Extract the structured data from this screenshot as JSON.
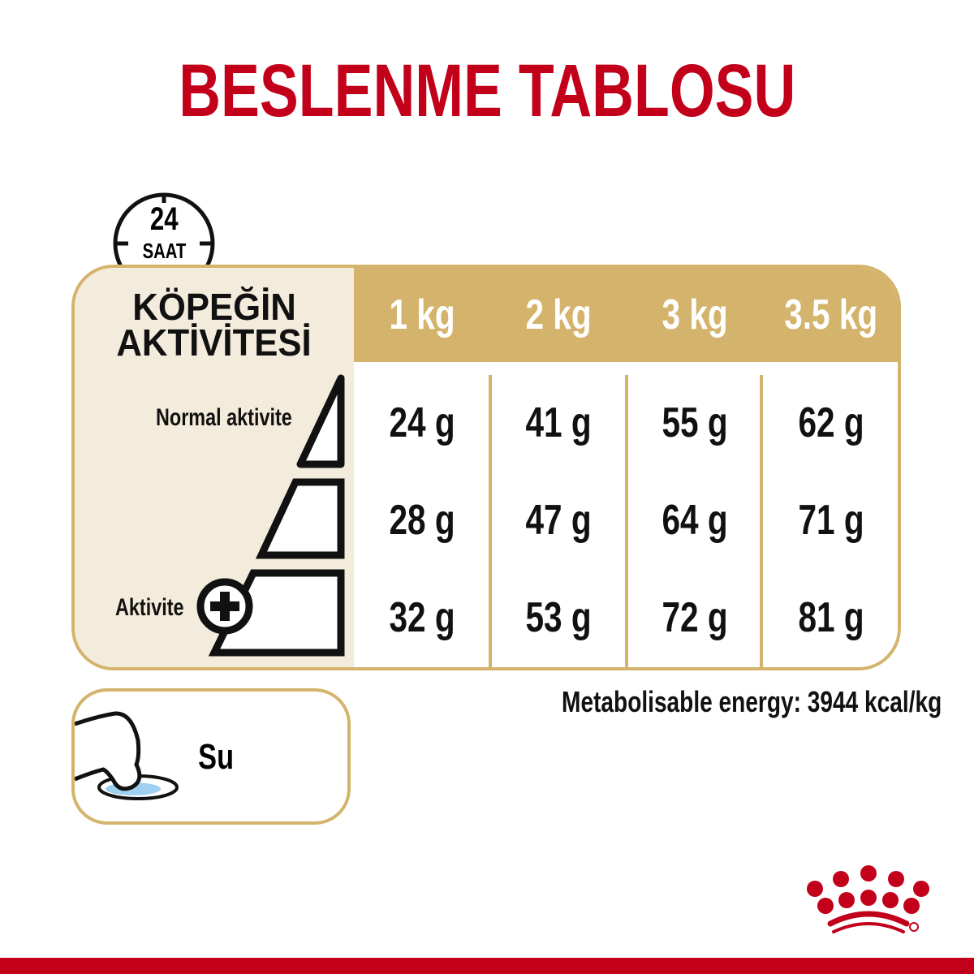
{
  "title": "BESLENME TABLOSU",
  "clock": {
    "hours": "24",
    "unit": "SAAT"
  },
  "activity": {
    "title_line1": "KÖPEĞİN",
    "title_line2": "AKTİVİTESİ",
    "normal_label": "Normal aktivite",
    "high_label": "Aktivite"
  },
  "weights": [
    "1 kg",
    "2 kg",
    "3 kg",
    "3.5 kg"
  ],
  "rows": [
    [
      "24 g",
      "41 g",
      "55 g",
      "62 g"
    ],
    [
      "28 g",
      "47 g",
      "64 g",
      "71 g"
    ],
    [
      "32 g",
      "53 g",
      "72 g",
      "81 g"
    ]
  ],
  "water": {
    "label": "Su"
  },
  "energy": "Metabolisable energy: 3944 kcal/kg",
  "colors": {
    "brand_red": "#c3001a",
    "gold": "#d4b46c",
    "beige": "#f3ebdb",
    "water_blue": "#9fd0f2"
  }
}
